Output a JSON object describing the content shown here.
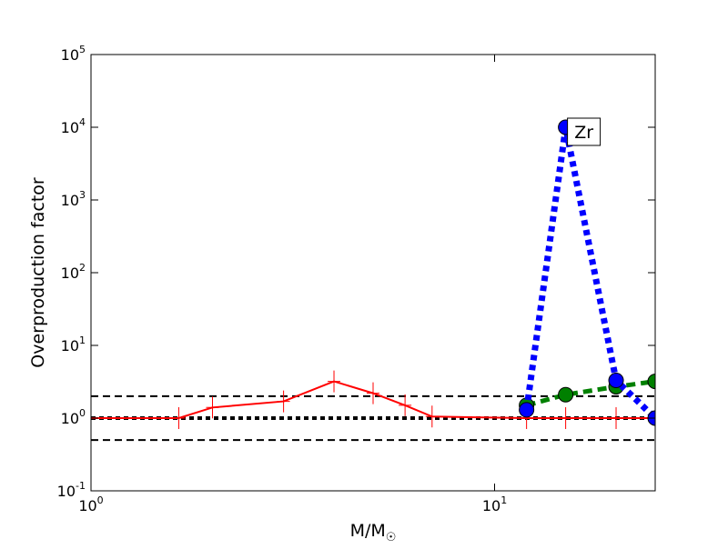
{
  "chart_data": {
    "type": "line",
    "x_label": "M/M☉",
    "y_label": "Overproduction factor",
    "xscale": "log",
    "yscale": "log",
    "xlim": [
      1,
      25
    ],
    "ylim": [
      0.1,
      100000
    ],
    "xticks": [
      {
        "value": 1,
        "label": "10^0"
      },
      {
        "value": 10,
        "label": "10^1"
      }
    ],
    "yticks": [
      {
        "value": 0.1,
        "label": "10^-1"
      },
      {
        "value": 1,
        "label": "10^0"
      },
      {
        "value": 10,
        "label": "10^1"
      },
      {
        "value": 100,
        "label": "10^2"
      },
      {
        "value": 1000,
        "label": "10^3"
      },
      {
        "value": 10000,
        "label": "10^4"
      },
      {
        "value": 100000,
        "label": "10^5"
      }
    ],
    "hlines": [
      {
        "value": 0.5,
        "color": "#000000",
        "style": "dashed"
      },
      {
        "value": 1,
        "color": "#000000",
        "style": "dotted"
      },
      {
        "value": 2,
        "color": "#000000",
        "style": "dashed"
      }
    ],
    "series": [
      {
        "color": "#ff0000",
        "style": "solid",
        "marker": "plus",
        "x": [
          1,
          1.65,
          2,
          3,
          4,
          5,
          6,
          7,
          12,
          15,
          20,
          25
        ],
        "values": [
          1.0,
          1.0,
          1.4,
          1.7,
          3.2,
          2.2,
          1.5,
          1.05,
          1.0,
          1.0,
          1.0,
          1.0
        ]
      },
      {
        "color": "#008000",
        "style": "dashed",
        "marker": "circle",
        "x": [
          12,
          15,
          20,
          25
        ],
        "values": [
          1.5,
          2.1,
          2.7,
          3.2
        ]
      },
      {
        "color": "#0000ff",
        "style": "dotted",
        "marker": "circle",
        "x": [
          12,
          15,
          20,
          25
        ],
        "values": [
          1.3,
          10000,
          3.3,
          1.0
        ]
      }
    ],
    "annotation": {
      "text": "Zr",
      "x": 15,
      "y": 10000
    }
  }
}
